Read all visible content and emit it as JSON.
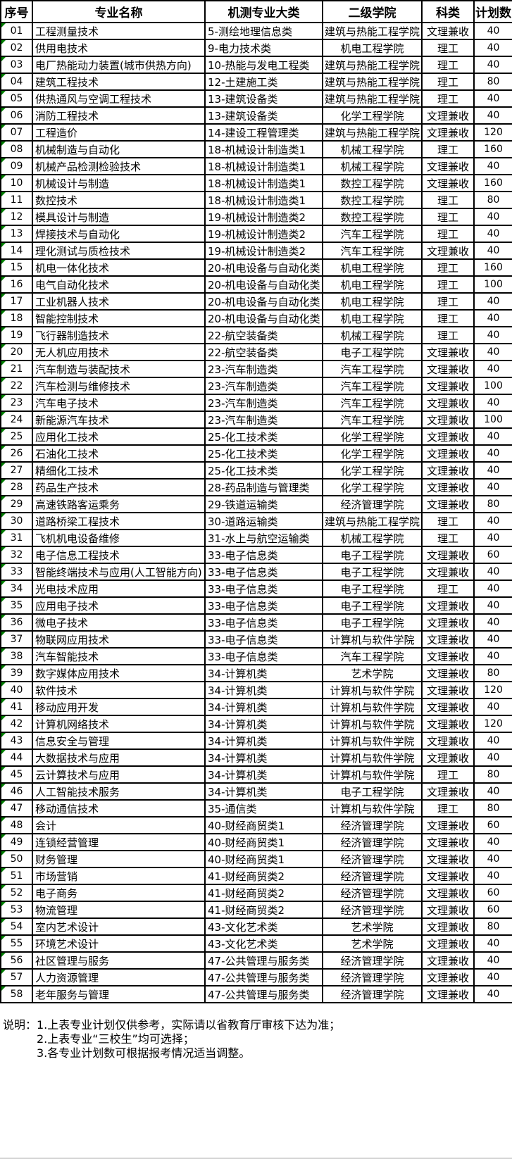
{
  "table": {
    "headers": [
      "序号",
      "专业名称",
      "机测专业大类",
      "二级学院",
      "科类",
      "计划数"
    ],
    "rows": [
      [
        "01",
        "工程测量技术",
        "5-测绘地理信息类",
        "建筑与热能工程学院",
        "文理兼收",
        "40"
      ],
      [
        "02",
        "供用电技术",
        "9-电力技术类",
        "机电工程学院",
        "理工",
        "40"
      ],
      [
        "03",
        "电厂热能动力装置(城市供热方向)",
        "10-热能与发电工程类",
        "建筑与热能工程学院",
        "理工",
        "40"
      ],
      [
        "04",
        "建筑工程技术",
        "12-土建施工类",
        "建筑与热能工程学院",
        "理工",
        "80"
      ],
      [
        "05",
        "供热通风与空调工程技术",
        "13-建筑设备类",
        "建筑与热能工程学院",
        "理工",
        "40"
      ],
      [
        "06",
        "消防工程技术",
        "13-建筑设备类",
        "化学工程学院",
        "文理兼收",
        "40"
      ],
      [
        "07",
        "工程造价",
        "14-建设工程管理类",
        "建筑与热能工程学院",
        "文理兼收",
        "120"
      ],
      [
        "08",
        "机械制造与自动化",
        "18-机械设计制造类1",
        "机械工程学院",
        "理工",
        "160"
      ],
      [
        "09",
        "机械产品检测检验技术",
        "18-机械设计制造类1",
        "机械工程学院",
        "文理兼收",
        "40"
      ],
      [
        "10",
        "机械设计与制造",
        "18-机械设计制造类1",
        "数控工程学院",
        "文理兼收",
        "160"
      ],
      [
        "11",
        "数控技术",
        "18-机械设计制造类1",
        "数控工程学院",
        "理工",
        "80"
      ],
      [
        "12",
        "模具设计与制造",
        "19-机械设计制造类2",
        "数控工程学院",
        "理工",
        "40"
      ],
      [
        "13",
        "焊接技术与自动化",
        "19-机械设计制造类2",
        "汽车工程学院",
        "理工",
        "40"
      ],
      [
        "14",
        "理化测试与质检技术",
        "19-机械设计制造类2",
        "汽车工程学院",
        "文理兼收",
        "40"
      ],
      [
        "15",
        "机电一体化技术",
        "20-机电设备与自动化类",
        "机电工程学院",
        "理工",
        "160"
      ],
      [
        "16",
        "电气自动化技术",
        "20-机电设备与自动化类",
        "机电工程学院",
        "理工",
        "100"
      ],
      [
        "17",
        "工业机器人技术",
        "20-机电设备与自动化类",
        "机电工程学院",
        "理工",
        "40"
      ],
      [
        "18",
        "智能控制技术",
        "20-机电设备与自动化类",
        "机电工程学院",
        "理工",
        "40"
      ],
      [
        "19",
        "飞行器制造技术",
        "22-航空装备类",
        "机械工程学院",
        "理工",
        "40"
      ],
      [
        "20",
        "无人机应用技术",
        "22-航空装备类",
        "电子工程学院",
        "文理兼收",
        "40"
      ],
      [
        "21",
        "汽车制造与装配技术",
        "23-汽车制造类",
        "汽车工程学院",
        "文理兼收",
        "40"
      ],
      [
        "22",
        "汽车检测与维修技术",
        "23-汽车制造类",
        "汽车工程学院",
        "文理兼收",
        "100"
      ],
      [
        "23",
        "汽车电子技术",
        "23-汽车制造类",
        "汽车工程学院",
        "文理兼收",
        "40"
      ],
      [
        "24",
        "新能源汽车技术",
        "23-汽车制造类",
        "汽车工程学院",
        "文理兼收",
        "100"
      ],
      [
        "25",
        "应用化工技术",
        "25-化工技术类",
        "化学工程学院",
        "文理兼收",
        "40"
      ],
      [
        "26",
        "石油化工技术",
        "25-化工技术类",
        "化学工程学院",
        "文理兼收",
        "40"
      ],
      [
        "27",
        "精细化工技术",
        "25-化工技术类",
        "化学工程学院",
        "文理兼收",
        "40"
      ],
      [
        "28",
        "药品生产技术",
        "28-药品制造与管理类",
        "化学工程学院",
        "文理兼收",
        "40"
      ],
      [
        "29",
        "高速铁路客运乘务",
        "29-铁道运输类",
        "经济管理学院",
        "文理兼收",
        "80"
      ],
      [
        "30",
        "道路桥梁工程技术",
        "30-道路运输类",
        "建筑与热能工程学院",
        "理工",
        "40"
      ],
      [
        "31",
        "飞机机电设备维修",
        "31-水上与航空运输类",
        "机械工程学院",
        "理工",
        "40"
      ],
      [
        "32",
        "电子信息工程技术",
        "33-电子信息类",
        "电子工程学院",
        "文理兼收",
        "60"
      ],
      [
        "33",
        "智能终端技术与应用(人工智能方向)",
        "33-电子信息类",
        "电子工程学院",
        "文理兼收",
        "40"
      ],
      [
        "34",
        "光电技术应用",
        "33-电子信息类",
        "电子工程学院",
        "理工",
        "40"
      ],
      [
        "35",
        "应用电子技术",
        "33-电子信息类",
        "电子工程学院",
        "文理兼收",
        "40"
      ],
      [
        "36",
        "微电子技术",
        "33-电子信息类",
        "电子工程学院",
        "文理兼收",
        "40"
      ],
      [
        "37",
        "物联网应用技术",
        "33-电子信息类",
        "计算机与软件学院",
        "文理兼收",
        "40"
      ],
      [
        "38",
        "汽车智能技术",
        "33-电子信息类",
        "汽车工程学院",
        "文理兼收",
        "40"
      ],
      [
        "39",
        "数字媒体应用技术",
        "34-计算机类",
        "艺术学院",
        "文理兼收",
        "80"
      ],
      [
        "40",
        "软件技术",
        "34-计算机类",
        "计算机与软件学院",
        "文理兼收",
        "120"
      ],
      [
        "41",
        "移动应用开发",
        "34-计算机类",
        "计算机与软件学院",
        "文理兼收",
        "40"
      ],
      [
        "42",
        "计算机网络技术",
        "34-计算机类",
        "计算机与软件学院",
        "文理兼收",
        "120"
      ],
      [
        "43",
        "信息安全与管理",
        "34-计算机类",
        "计算机与软件学院",
        "文理兼收",
        "40"
      ],
      [
        "44",
        "大数据技术与应用",
        "34-计算机类",
        "计算机与软件学院",
        "文理兼收",
        "40"
      ],
      [
        "45",
        "云计算技术与应用",
        "34-计算机类",
        "计算机与软件学院",
        "理工",
        "80"
      ],
      [
        "46",
        "人工智能技术服务",
        "34-计算机类",
        "电子工程学院",
        "文理兼收",
        "40"
      ],
      [
        "47",
        "移动通信技术",
        "35-通信类",
        "计算机与软件学院",
        "理工",
        "80"
      ],
      [
        "48",
        "会计",
        "40-财经商贸类1",
        "经济管理学院",
        "文理兼收",
        "60"
      ],
      [
        "49",
        "连锁经营管理",
        "40-财经商贸类1",
        "经济管理学院",
        "文理兼收",
        "40"
      ],
      [
        "50",
        "财务管理",
        "40-财经商贸类1",
        "经济管理学院",
        "文理兼收",
        "40"
      ],
      [
        "51",
        "市场营销",
        "41-财经商贸类2",
        "经济管理学院",
        "文理兼收",
        "40"
      ],
      [
        "52",
        "电子商务",
        "41-财经商贸类2",
        "经济管理学院",
        "文理兼收",
        "60"
      ],
      [
        "53",
        "物流管理",
        "41-财经商贸类2",
        "经济管理学院",
        "文理兼收",
        "60"
      ],
      [
        "54",
        "室内艺术设计",
        "43-文化艺术类",
        "艺术学院",
        "文理兼收",
        "80"
      ],
      [
        "55",
        "环境艺术设计",
        "43-文化艺术类",
        "艺术学院",
        "文理兼收",
        "40"
      ],
      [
        "56",
        "社区管理与服务",
        "47-公共管理与服务类",
        "经济管理学院",
        "文理兼收",
        "40"
      ],
      [
        "57",
        "人力资源管理",
        "47-公共管理与服务类",
        "经济管理学院",
        "文理兼收",
        "40"
      ],
      [
        "58",
        "老年服务与管理",
        "47-公共管理与服务类",
        "经济管理学院",
        "文理兼收",
        "40"
      ]
    ]
  },
  "notes": {
    "label": "说明：",
    "items": [
      "1.上表专业计划仅供参考，实际请以省教育厅审核下达为准；",
      "2.上表专业“三校生”均可选择；",
      "3.各专业计划数可根据报考情况适当调整。"
    ]
  },
  "colors": {
    "border": "#000000",
    "flag_triangle": "#008000",
    "background": "#ffffff"
  }
}
